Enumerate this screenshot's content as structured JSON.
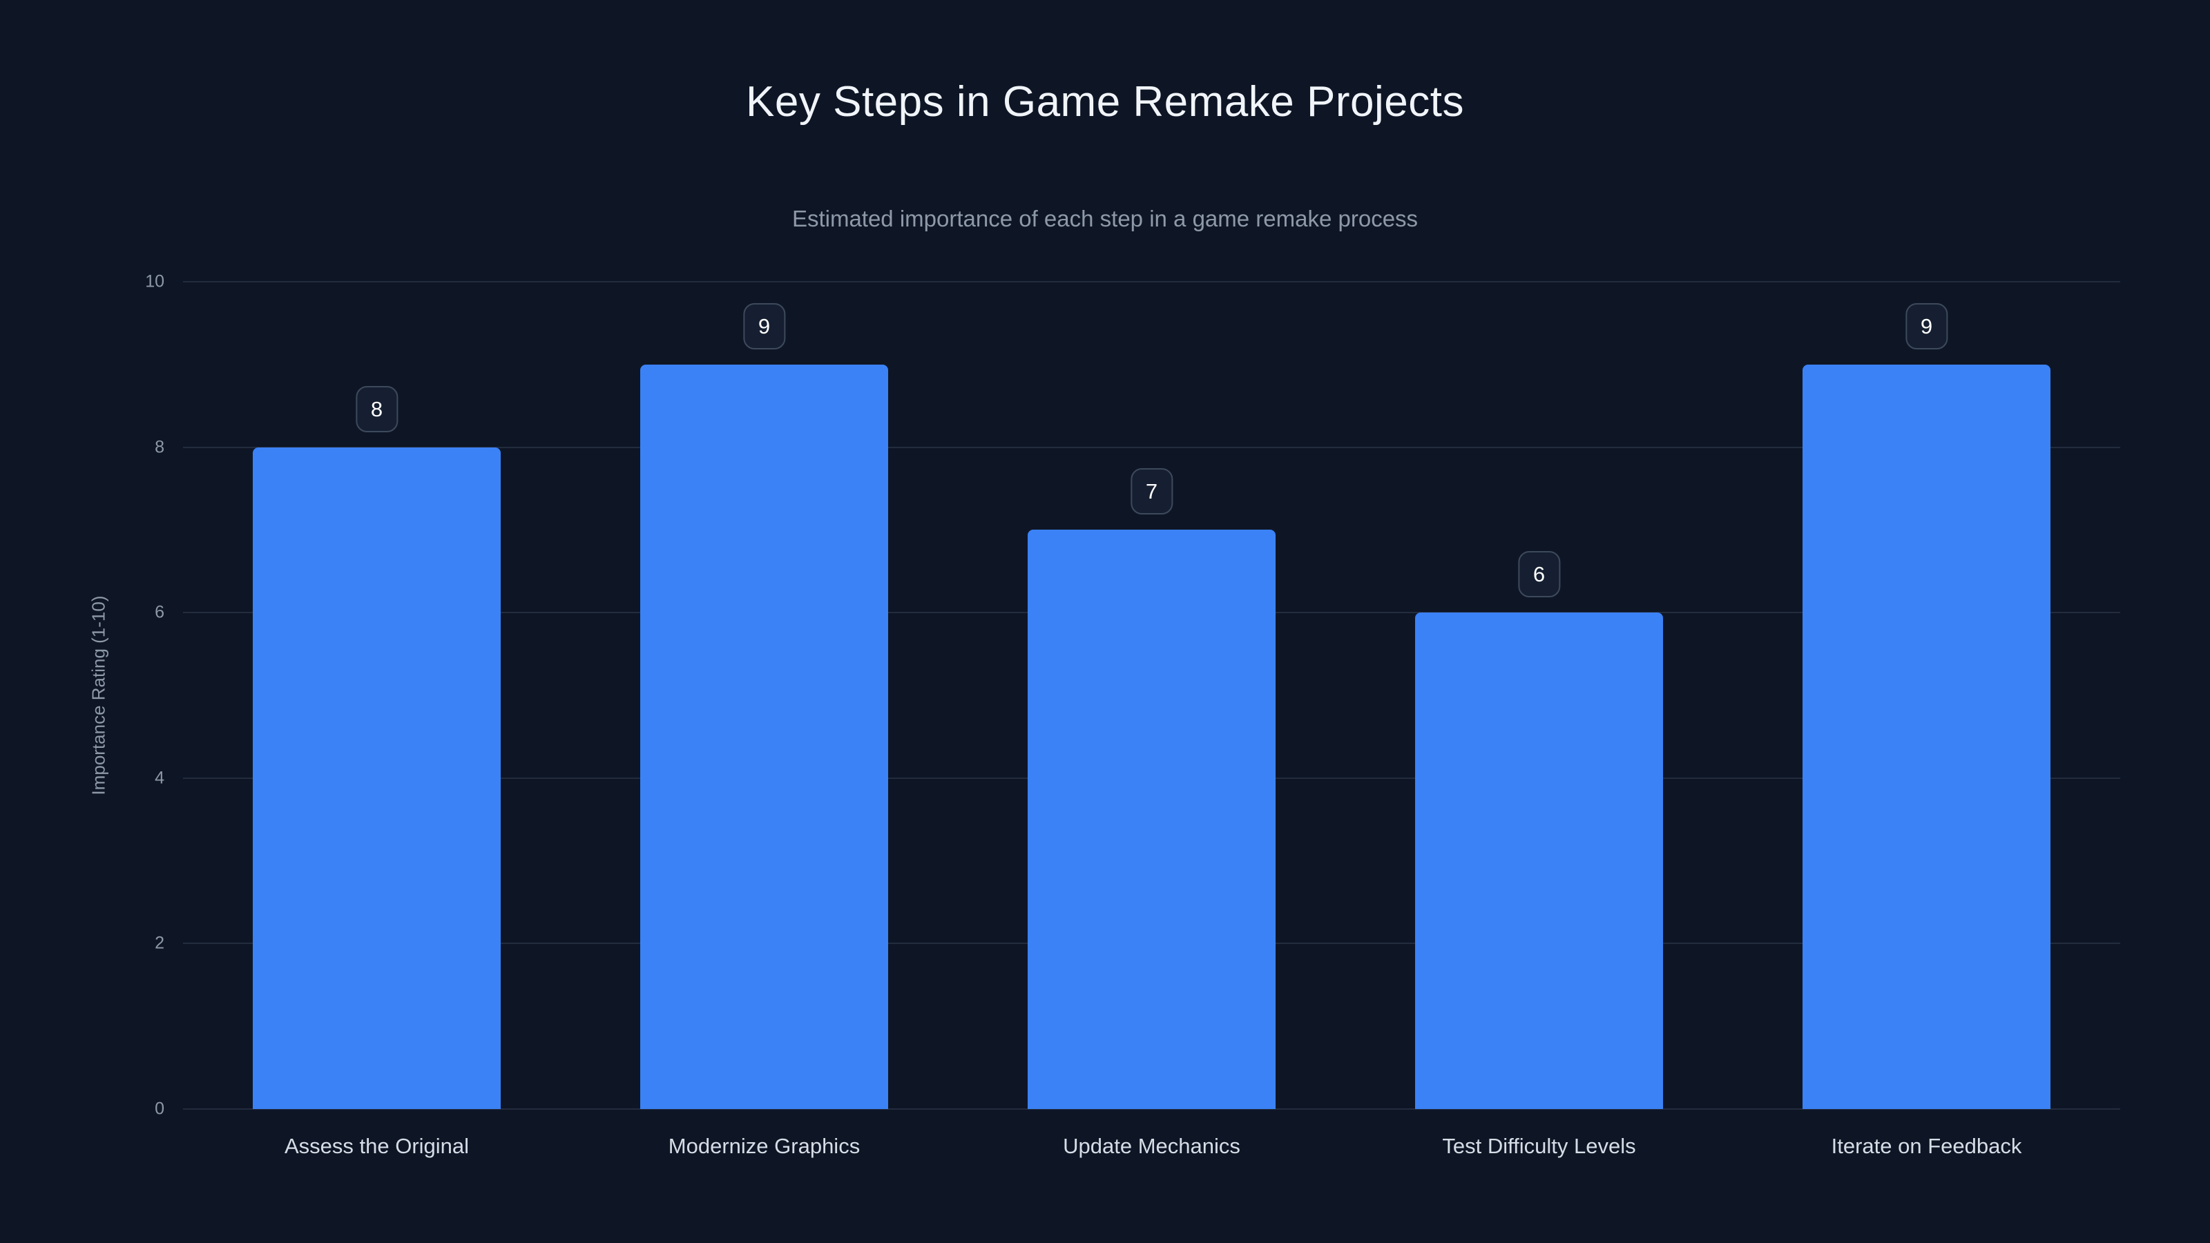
{
  "chart_data": {
    "type": "bar",
    "title": "Key Steps in Game Remake Projects",
    "subtitle": "Estimated importance of each step in a game remake process",
    "categories": [
      "Assess the Original",
      "Modernize Graphics",
      "Update Mechanics",
      "Test Difficulty Levels",
      "Iterate on Feedback"
    ],
    "values": [
      8,
      9,
      7,
      6,
      9
    ],
    "xlabel": "",
    "ylabel": "Importance Rating (1-10)",
    "ylim": [
      0,
      10
    ],
    "yticks": [
      0,
      2,
      4,
      6,
      8,
      10
    ],
    "grid": true,
    "legend": false,
    "value_labels": "badges above bars"
  },
  "theme": {
    "background": "#0e1626",
    "bar": "#3b82f6",
    "grid": "rgba(148,163,184,0.16)",
    "title": "#f1f5f9",
    "subtitle": "#8e99a8",
    "tick": "#8e99a8",
    "xlabel": "#d7dde6",
    "badge_border": "#3d4a5c",
    "badge_bg": "#151f31",
    "badge_text": "#ffffff"
  }
}
